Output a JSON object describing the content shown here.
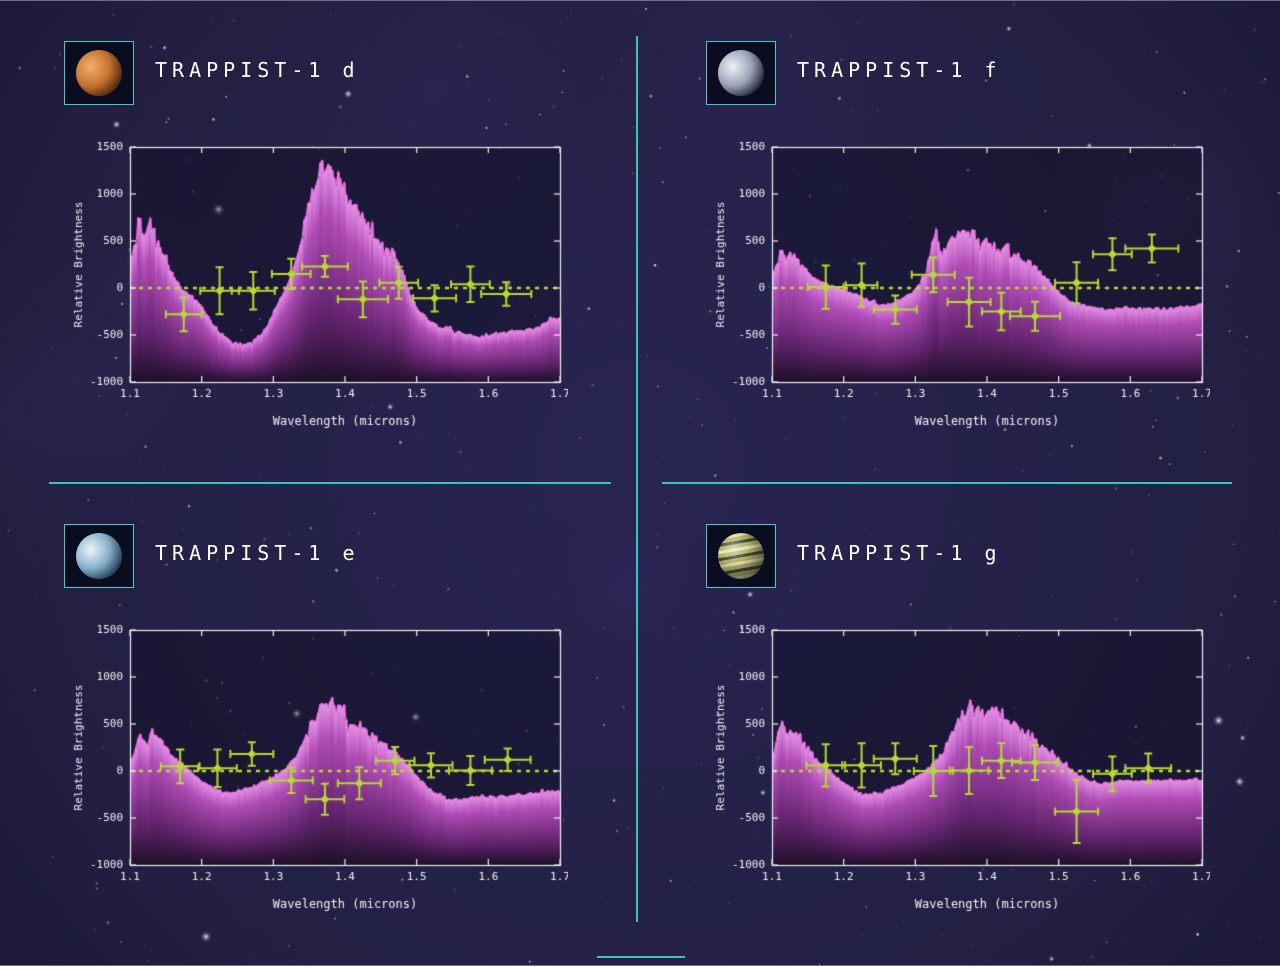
{
  "page": {
    "background_color": "#232040",
    "divider_color": "#35c4c4",
    "title_color": "#ffffff",
    "accent_green": "#b8d832",
    "spectrum_color": "#f06ae6"
  },
  "panels": [
    {
      "id": "d",
      "planet_name": "planet-d",
      "planet_style": {
        "highlight": "#f2b06a",
        "base": "#c2722e",
        "dark": "#4a2410",
        "banded": false
      }
    },
    {
      "id": "f",
      "planet_name": "planet-f",
      "planet_style": {
        "highlight": "#eef1f5",
        "base": "#98a2b6",
        "dark": "#23262f",
        "banded": false
      }
    },
    {
      "id": "e",
      "planet_name": "planet-e",
      "planet_style": {
        "highlight": "#edf6fa",
        "base": "#84adc9",
        "dark": "#1e3a50",
        "banded": false
      }
    },
    {
      "id": "g",
      "planet_name": "planet-g",
      "planet_style": {
        "highlight": "#e4dfa8",
        "base": "#aeb065",
        "dark": "#3c4428",
        "banded": true
      }
    }
  ],
  "chart_data": [
    {
      "type": "line",
      "title": "TRAPPIST-1 d",
      "xlabel": "Wavelength (microns)",
      "ylabel": "Relative Brightness",
      "xlim": [
        1.1,
        1.7
      ],
      "ylim": [
        -1000,
        1500
      ],
      "xticks": [
        1.1,
        1.2,
        1.3,
        1.4,
        1.5,
        1.6,
        1.7
      ],
      "yticks": [
        -1000,
        -500,
        0,
        500,
        1000,
        1500
      ],
      "zero_line": 0,
      "grid": false,
      "legend": "none",
      "spectrum": [
        [
          1.1,
          250
        ],
        [
          1.108,
          500
        ],
        [
          1.113,
          880
        ],
        [
          1.118,
          600
        ],
        [
          1.125,
          650
        ],
        [
          1.132,
          720
        ],
        [
          1.14,
          420
        ],
        [
          1.148,
          380
        ],
        [
          1.155,
          180
        ],
        [
          1.163,
          120
        ],
        [
          1.172,
          -20
        ],
        [
          1.185,
          -80
        ],
        [
          1.2,
          -200
        ],
        [
          1.215,
          -380
        ],
        [
          1.23,
          -520
        ],
        [
          1.25,
          -600
        ],
        [
          1.27,
          -590
        ],
        [
          1.29,
          -420
        ],
        [
          1.305,
          -180
        ],
        [
          1.315,
          -40
        ],
        [
          1.325,
          120
        ],
        [
          1.335,
          420
        ],
        [
          1.345,
          780
        ],
        [
          1.355,
          1000
        ],
        [
          1.365,
          1250
        ],
        [
          1.375,
          1320
        ],
        [
          1.385,
          1180
        ],
        [
          1.395,
          1150
        ],
        [
          1.405,
          980
        ],
        [
          1.415,
          870
        ],
        [
          1.425,
          760
        ],
        [
          1.435,
          640
        ],
        [
          1.445,
          520
        ],
        [
          1.455,
          420
        ],
        [
          1.465,
          380
        ],
        [
          1.475,
          300
        ],
        [
          1.483,
          120
        ],
        [
          1.49,
          -60
        ],
        [
          1.5,
          -220
        ],
        [
          1.515,
          -330
        ],
        [
          1.53,
          -400
        ],
        [
          1.55,
          -450
        ],
        [
          1.57,
          -490
        ],
        [
          1.59,
          -510
        ],
        [
          1.61,
          -480
        ],
        [
          1.63,
          -470
        ],
        [
          1.65,
          -440
        ],
        [
          1.67,
          -420
        ],
        [
          1.685,
          -350
        ],
        [
          1.7,
          -310
        ]
      ],
      "points": [
        {
          "x": 1.175,
          "y": -280,
          "xerr": 0.025,
          "yerr": 180
        },
        {
          "x": 1.225,
          "y": -30,
          "xerr": 0.027,
          "yerr": 250
        },
        {
          "x": 1.272,
          "y": -30,
          "xerr": 0.03,
          "yerr": 200
        },
        {
          "x": 1.325,
          "y": 150,
          "xerr": 0.027,
          "yerr": 160
        },
        {
          "x": 1.372,
          "y": 230,
          "xerr": 0.032,
          "yerr": 110
        },
        {
          "x": 1.425,
          "y": -120,
          "xerr": 0.035,
          "yerr": 190
        },
        {
          "x": 1.475,
          "y": 55,
          "xerr": 0.027,
          "yerr": 170
        },
        {
          "x": 1.525,
          "y": -110,
          "xerr": 0.03,
          "yerr": 140
        },
        {
          "x": 1.575,
          "y": 40,
          "xerr": 0.027,
          "yerr": 190
        },
        {
          "x": 1.625,
          "y": -65,
          "xerr": 0.035,
          "yerr": 125
        }
      ]
    },
    {
      "type": "line",
      "title": "TRAPPIST-1 f",
      "xlabel": "Wavelength (microns)",
      "ylabel": "Relative Brightness",
      "xlim": [
        1.1,
        1.7
      ],
      "ylim": [
        -1000,
        1500
      ],
      "xticks": [
        1.1,
        1.2,
        1.3,
        1.4,
        1.5,
        1.6,
        1.7
      ],
      "yticks": [
        -1000,
        -500,
        0,
        500,
        1000,
        1500
      ],
      "zero_line": 0,
      "grid": false,
      "legend": "none",
      "spectrum": [
        [
          1.1,
          120
        ],
        [
          1.108,
          300
        ],
        [
          1.113,
          430
        ],
        [
          1.12,
          330
        ],
        [
          1.128,
          360
        ],
        [
          1.135,
          300
        ],
        [
          1.143,
          220
        ],
        [
          1.152,
          140
        ],
        [
          1.16,
          90
        ],
        [
          1.175,
          40
        ],
        [
          1.19,
          10
        ],
        [
          1.205,
          -30
        ],
        [
          1.22,
          -80
        ],
        [
          1.235,
          -140
        ],
        [
          1.25,
          -180
        ],
        [
          1.265,
          -170
        ],
        [
          1.28,
          -120
        ],
        [
          1.295,
          -60
        ],
        [
          1.305,
          30
        ],
        [
          1.315,
          180
        ],
        [
          1.322,
          420
        ],
        [
          1.328,
          620
        ],
        [
          1.335,
          380
        ],
        [
          1.345,
          480
        ],
        [
          1.355,
          560
        ],
        [
          1.365,
          600
        ],
        [
          1.375,
          620
        ],
        [
          1.385,
          540
        ],
        [
          1.395,
          490
        ],
        [
          1.41,
          430
        ],
        [
          1.425,
          390
        ],
        [
          1.44,
          340
        ],
        [
          1.455,
          280
        ],
        [
          1.47,
          200
        ],
        [
          1.485,
          90
        ],
        [
          1.5,
          -40
        ],
        [
          1.515,
          -140
        ],
        [
          1.53,
          -180
        ],
        [
          1.55,
          -210
        ],
        [
          1.57,
          -230
        ],
        [
          1.59,
          -210
        ],
        [
          1.61,
          -230
        ],
        [
          1.63,
          -210
        ],
        [
          1.65,
          -230
        ],
        [
          1.67,
          -200
        ],
        [
          1.685,
          -190
        ],
        [
          1.7,
          -170
        ]
      ],
      "points": [
        {
          "x": 1.175,
          "y": 10,
          "xerr": 0.025,
          "yerr": 230
        },
        {
          "x": 1.225,
          "y": 30,
          "xerr": 0.022,
          "yerr": 230
        },
        {
          "x": 1.272,
          "y": -230,
          "xerr": 0.03,
          "yerr": 150
        },
        {
          "x": 1.325,
          "y": 140,
          "xerr": 0.03,
          "yerr": 185
        },
        {
          "x": 1.375,
          "y": -150,
          "xerr": 0.03,
          "yerr": 260
        },
        {
          "x": 1.42,
          "y": -250,
          "xerr": 0.027,
          "yerr": 200
        },
        {
          "x": 1.467,
          "y": -300,
          "xerr": 0.035,
          "yerr": 155
        },
        {
          "x": 1.525,
          "y": 55,
          "xerr": 0.03,
          "yerr": 220
        },
        {
          "x": 1.575,
          "y": 360,
          "xerr": 0.027,
          "yerr": 170
        },
        {
          "x": 1.63,
          "y": 420,
          "xerr": 0.037,
          "yerr": 150
        }
      ]
    },
    {
      "type": "line",
      "title": "TRAPPIST-1 e",
      "xlabel": "Wavelength (microns)",
      "ylabel": "Relative Brightness",
      "xlim": [
        1.1,
        1.7
      ],
      "ylim": [
        -1000,
        1500
      ],
      "xticks": [
        1.1,
        1.2,
        1.3,
        1.4,
        1.5,
        1.6,
        1.7
      ],
      "yticks": [
        -1000,
        -500,
        0,
        500,
        1000,
        1500
      ],
      "zero_line": 0,
      "grid": false,
      "legend": "none",
      "spectrum": [
        [
          1.1,
          80
        ],
        [
          1.108,
          250
        ],
        [
          1.113,
          380
        ],
        [
          1.12,
          300
        ],
        [
          1.128,
          380
        ],
        [
          1.135,
          420
        ],
        [
          1.143,
          320
        ],
        [
          1.152,
          230
        ],
        [
          1.16,
          150
        ],
        [
          1.175,
          60
        ],
        [
          1.19,
          -40
        ],
        [
          1.205,
          -140
        ],
        [
          1.22,
          -200
        ],
        [
          1.235,
          -230
        ],
        [
          1.25,
          -220
        ],
        [
          1.265,
          -190
        ],
        [
          1.28,
          -140
        ],
        [
          1.295,
          -80
        ],
        [
          1.31,
          -10
        ],
        [
          1.325,
          90
        ],
        [
          1.34,
          260
        ],
        [
          1.35,
          450
        ],
        [
          1.36,
          620
        ],
        [
          1.37,
          720
        ],
        [
          1.378,
          760
        ],
        [
          1.386,
          680
        ],
        [
          1.395,
          640
        ],
        [
          1.405,
          560
        ],
        [
          1.42,
          470
        ],
        [
          1.435,
          380
        ],
        [
          1.45,
          300
        ],
        [
          1.465,
          230
        ],
        [
          1.478,
          150
        ],
        [
          1.49,
          40
        ],
        [
          1.5,
          -60
        ],
        [
          1.515,
          -180
        ],
        [
          1.53,
          -260
        ],
        [
          1.55,
          -310
        ],
        [
          1.57,
          -290
        ],
        [
          1.59,
          -270
        ],
        [
          1.61,
          -280
        ],
        [
          1.63,
          -260
        ],
        [
          1.65,
          -250
        ],
        [
          1.67,
          -230
        ],
        [
          1.685,
          -220
        ],
        [
          1.7,
          -210
        ]
      ],
      "points": [
        {
          "x": 1.17,
          "y": 50,
          "xerr": 0.027,
          "yerr": 180
        },
        {
          "x": 1.222,
          "y": 30,
          "xerr": 0.027,
          "yerr": 200
        },
        {
          "x": 1.27,
          "y": 180,
          "xerr": 0.03,
          "yerr": 125
        },
        {
          "x": 1.325,
          "y": -100,
          "xerr": 0.03,
          "yerr": 135
        },
        {
          "x": 1.372,
          "y": -300,
          "xerr": 0.027,
          "yerr": 165
        },
        {
          "x": 1.42,
          "y": -130,
          "xerr": 0.03,
          "yerr": 170
        },
        {
          "x": 1.47,
          "y": 110,
          "xerr": 0.027,
          "yerr": 145
        },
        {
          "x": 1.52,
          "y": 60,
          "xerr": 0.03,
          "yerr": 130
        },
        {
          "x": 1.575,
          "y": 5,
          "xerr": 0.03,
          "yerr": 155
        },
        {
          "x": 1.627,
          "y": 120,
          "xerr": 0.032,
          "yerr": 120
        }
      ]
    },
    {
      "type": "line",
      "title": "TRAPPIST-1 g",
      "xlabel": "Wavelength (microns)",
      "ylabel": "Relative Brightness",
      "xlim": [
        1.1,
        1.7
      ],
      "ylim": [
        -1000,
        1500
      ],
      "xticks": [
        1.1,
        1.2,
        1.3,
        1.4,
        1.5,
        1.6,
        1.7
      ],
      "yticks": [
        -1000,
        -500,
        0,
        500,
        1000,
        1500
      ],
      "zero_line": 0,
      "grid": false,
      "legend": "none",
      "spectrum": [
        [
          1.1,
          150
        ],
        [
          1.108,
          350
        ],
        [
          1.113,
          500
        ],
        [
          1.12,
          400
        ],
        [
          1.128,
          440
        ],
        [
          1.135,
          400
        ],
        [
          1.143,
          300
        ],
        [
          1.152,
          220
        ],
        [
          1.16,
          140
        ],
        [
          1.175,
          50
        ],
        [
          1.19,
          -60
        ],
        [
          1.205,
          -160
        ],
        [
          1.22,
          -230
        ],
        [
          1.235,
          -260
        ],
        [
          1.25,
          -240
        ],
        [
          1.265,
          -200
        ],
        [
          1.28,
          -150
        ],
        [
          1.295,
          -90
        ],
        [
          1.31,
          -20
        ],
        [
          1.325,
          80
        ],
        [
          1.34,
          220
        ],
        [
          1.35,
          380
        ],
        [
          1.36,
          540
        ],
        [
          1.37,
          650
        ],
        [
          1.378,
          700
        ],
        [
          1.386,
          620
        ],
        [
          1.395,
          580
        ],
        [
          1.405,
          600
        ],
        [
          1.415,
          640
        ],
        [
          1.425,
          600
        ],
        [
          1.435,
          520
        ],
        [
          1.45,
          430
        ],
        [
          1.465,
          340
        ],
        [
          1.48,
          250
        ],
        [
          1.495,
          160
        ],
        [
          1.51,
          60
        ],
        [
          1.525,
          -30
        ],
        [
          1.54,
          -90
        ],
        [
          1.555,
          -130
        ],
        [
          1.57,
          -120
        ],
        [
          1.59,
          -100
        ],
        [
          1.61,
          -110
        ],
        [
          1.63,
          -95
        ],
        [
          1.65,
          -105
        ],
        [
          1.67,
          -95
        ],
        [
          1.685,
          -90
        ],
        [
          1.7,
          -85
        ]
      ],
      "points": [
        {
          "x": 1.175,
          "y": 60,
          "xerr": 0.027,
          "yerr": 225
        },
        {
          "x": 1.225,
          "y": 60,
          "xerr": 0.027,
          "yerr": 235
        },
        {
          "x": 1.272,
          "y": 130,
          "xerr": 0.03,
          "yerr": 165
        },
        {
          "x": 1.325,
          "y": 0,
          "xerr": 0.027,
          "yerr": 265
        },
        {
          "x": 1.375,
          "y": 5,
          "xerr": 0.027,
          "yerr": 250
        },
        {
          "x": 1.42,
          "y": 110,
          "xerr": 0.027,
          "yerr": 185
        },
        {
          "x": 1.467,
          "y": 90,
          "xerr": 0.032,
          "yerr": 185
        },
        {
          "x": 1.525,
          "y": -430,
          "xerr": 0.03,
          "yerr": 335
        },
        {
          "x": 1.575,
          "y": -30,
          "xerr": 0.027,
          "yerr": 185
        },
        {
          "x": 1.625,
          "y": 30,
          "xerr": 0.032,
          "yerr": 155
        }
      ]
    }
  ]
}
